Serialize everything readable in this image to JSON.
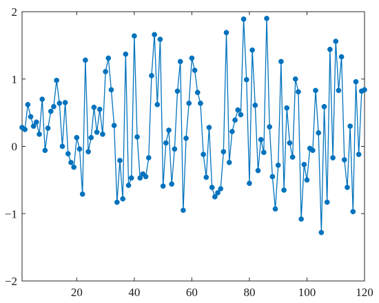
{
  "chart_data": {
    "type": "line",
    "title": "",
    "xlabel": "",
    "ylabel": "",
    "xlim": [
      1,
      120
    ],
    "ylim": [
      -2,
      2
    ],
    "grid": false,
    "x_ticks": [
      {
        "value": 20,
        "label": "20"
      },
      {
        "value": 40,
        "label": "40"
      },
      {
        "value": 60,
        "label": "60"
      },
      {
        "value": 80,
        "label": "80"
      },
      {
        "value": 100,
        "label": "100"
      },
      {
        "value": 120,
        "label": "120"
      }
    ],
    "y_ticks": [
      {
        "value": -2,
        "label": "−2"
      },
      {
        "value": -1,
        "label": "−1"
      },
      {
        "value": 0,
        "label": "0"
      },
      {
        "value": 1,
        "label": "1"
      },
      {
        "value": 2,
        "label": "2"
      }
    ],
    "series": [
      {
        "color": "#0072BD",
        "marker": "circle",
        "x": [
          1,
          2,
          3,
          4,
          5,
          6,
          7,
          8,
          9,
          10,
          11,
          12,
          13,
          14,
          15,
          16,
          17,
          18,
          19,
          20,
          21,
          22,
          23,
          24,
          25,
          26,
          27,
          28,
          29,
          30,
          31,
          32,
          33,
          34,
          35,
          36,
          37,
          38,
          39,
          40,
          41,
          42,
          43,
          44,
          45,
          46,
          47,
          48,
          49,
          50,
          51,
          52,
          53,
          54,
          55,
          56,
          57,
          58,
          59,
          60,
          61,
          62,
          63,
          64,
          65,
          66,
          67,
          68,
          69,
          70,
          71,
          72,
          73,
          74,
          75,
          76,
          77,
          78,
          79,
          80,
          81,
          82,
          83,
          84,
          85,
          86,
          87,
          88,
          89,
          90,
          91,
          92,
          93,
          94,
          95,
          96,
          97,
          98,
          99,
          100,
          101,
          102,
          103,
          104,
          105,
          106,
          107,
          108,
          109,
          110,
          111,
          112,
          113,
          114,
          115,
          116,
          117,
          118,
          119,
          120
        ],
        "y": [
          0.28,
          0.25,
          0.62,
          0.44,
          0.3,
          0.36,
          0.18,
          0.7,
          -0.06,
          0.27,
          0.52,
          0.59,
          0.98,
          0.64,
          0.0,
          0.65,
          -0.11,
          -0.24,
          -0.31,
          0.13,
          -0.04,
          -0.71,
          1.28,
          -0.08,
          0.13,
          0.58,
          0.21,
          0.55,
          0.18,
          1.11,
          1.31,
          0.84,
          0.31,
          -0.83,
          -0.21,
          -0.78,
          1.37,
          -0.58,
          -0.47,
          1.64,
          0.14,
          -0.47,
          -0.41,
          -0.45,
          -0.17,
          1.05,
          1.66,
          0.62,
          1.59,
          -0.59,
          0.05,
          0.24,
          -0.56,
          -0.04,
          0.82,
          1.26,
          -0.95,
          0.12,
          0.64,
          1.31,
          1.13,
          0.8,
          0.64,
          -0.12,
          -0.46,
          0.28,
          -0.61,
          -0.75,
          -0.69,
          -0.63,
          -0.08,
          1.69,
          -0.24,
          0.22,
          0.39,
          0.54,
          0.47,
          1.89,
          0.99,
          -0.55,
          1.43,
          0.61,
          -0.36,
          0.1,
          -0.09,
          1.9,
          0.29,
          -0.45,
          -0.93,
          -0.28,
          1.26,
          -0.65,
          0.57,
          0.05,
          -0.16,
          1.0,
          0.81,
          -1.08,
          -0.27,
          -0.5,
          -0.03,
          -0.06,
          0.83,
          0.2,
          -1.28,
          0.59,
          -0.83,
          1.44,
          -0.17,
          1.56,
          0.83,
          1.33,
          -0.2,
          -0.61,
          0.3,
          -0.97,
          0.96,
          -0.12,
          0.82,
          0.84
        ]
      }
    ]
  }
}
